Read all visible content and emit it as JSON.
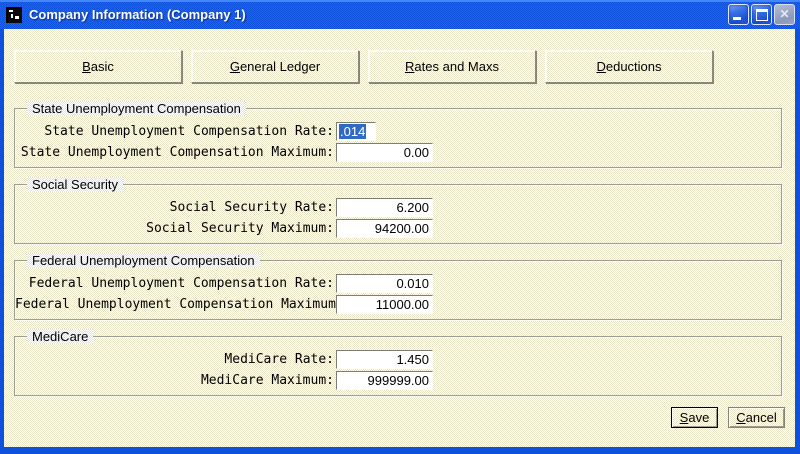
{
  "window": {
    "title": "Company Information (Company 1)"
  },
  "tabs": [
    {
      "first": "B",
      "rest": "asic"
    },
    {
      "first": "G",
      "rest": "eneral Ledger"
    },
    {
      "first": "R",
      "rest": "ates and Maxs"
    },
    {
      "first": "D",
      "rest": "eductions"
    }
  ],
  "groups": [
    {
      "title": "State Unemployment Compensation",
      "fields": [
        {
          "label": "State Unemployment Compensation Rate:",
          "value": ".014",
          "selected": true
        },
        {
          "label": "State Unemployment Compensation Maximum:",
          "value": "0.00"
        }
      ]
    },
    {
      "title": "Social Security",
      "fields": [
        {
          "label": "Social Security Rate:",
          "value": "6.200"
        },
        {
          "label": "Social Security Maximum:",
          "value": "94200.00"
        }
      ]
    },
    {
      "title": "Federal Unemployment Compensation",
      "fields": [
        {
          "label": "Federal Unemployment Compensation Rate:",
          "value": "0.010"
        },
        {
          "label": "Federal Unemployment Compensation Maximum:",
          "value": "11000.00"
        }
      ]
    },
    {
      "title": "MediCare",
      "fields": [
        {
          "label": "MediCare Rate:",
          "value": "1.450"
        },
        {
          "label": "MediCare Maximum:",
          "value": "999999.00"
        }
      ]
    }
  ],
  "actions": {
    "save": {
      "first": "S",
      "rest": "ave"
    },
    "cancel": {
      "first": "C",
      "rest": "ancel"
    }
  },
  "colors": {
    "titlebar_blue": "#0d51dc",
    "selection_blue": "#316ac5",
    "dither_tan": "#e9e5c9"
  }
}
